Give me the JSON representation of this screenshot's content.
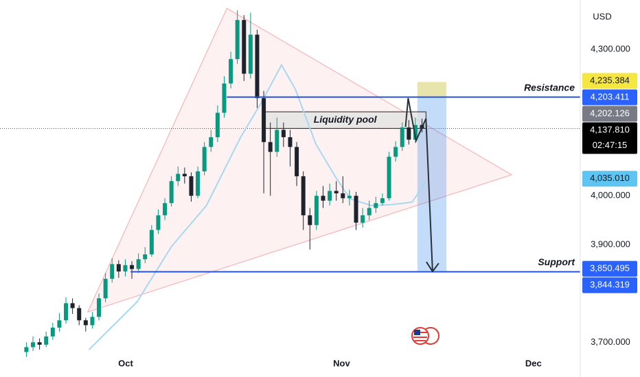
{
  "chart_data": {
    "type": "candlestick",
    "currency": "USD",
    "up_color": "#089981",
    "down_color": "#1e222d",
    "x": [
      4,
      5,
      6,
      7,
      8,
      9,
      10,
      11,
      12,
      13,
      14,
      15,
      16,
      17,
      18,
      19,
      20,
      21,
      22,
      23,
      24,
      25,
      26,
      27,
      28,
      29,
      30,
      31,
      32,
      33,
      34,
      35,
      36,
      37,
      38,
      39,
      40,
      41,
      42,
      43,
      44,
      45,
      46,
      47,
      48,
      49,
      50,
      51,
      52,
      53,
      54,
      55,
      56,
      57,
      58,
      59,
      60,
      61,
      62,
      63,
      64
    ],
    "open": [
      3680,
      3690,
      3700,
      3695,
      3712,
      3730,
      3745,
      3780,
      3770,
      3745,
      3735,
      3752,
      3790,
      3830,
      3860,
      3845,
      3858,
      3850,
      3870,
      3880,
      3930,
      3960,
      3985,
      4030,
      4045,
      4040,
      4000,
      4050,
      4100,
      4120,
      4170,
      4230,
      4280,
      4360,
      4250,
      4330,
      4200,
      4110,
      4090,
      4135,
      4120,
      4100,
      4040,
      3960,
      3940,
      4000,
      3990,
      4010,
      4005,
      3995,
      4000,
      3945,
      3960,
      3975,
      3985,
      3995,
      4080,
      4100,
      4140,
      4115,
      4145
    ],
    "high": [
      3700,
      3712,
      3708,
      3722,
      3740,
      3760,
      3792,
      3790,
      3776,
      3750,
      3762,
      3800,
      3842,
      3872,
      3868,
      3870,
      3866,
      3882,
      3895,
      3940,
      3972,
      3995,
      4040,
      4060,
      4058,
      4048,
      4060,
      4110,
      4135,
      4185,
      4245,
      4295,
      4380,
      4370,
      4375,
      4340,
      4215,
      4150,
      4160,
      4150,
      4135,
      4110,
      4050,
      3975,
      4010,
      4020,
      4025,
      4030,
      4040,
      4012,
      4008,
      3975,
      3990,
      3998,
      4005,
      4090,
      4112,
      4150,
      4155,
      4160,
      4158
    ],
    "low": [
      3670,
      3682,
      3685,
      3690,
      3705,
      3722,
      3738,
      3758,
      3735,
      3722,
      3728,
      3745,
      3782,
      3822,
      3832,
      3835,
      3830,
      3842,
      3862,
      3875,
      3922,
      3950,
      3978,
      4020,
      4025,
      3988,
      3995,
      4042,
      4090,
      4110,
      4160,
      4220,
      4270,
      4235,
      4240,
      4180,
      4005,
      4000,
      4080,
      4100,
      4060,
      4020,
      3930,
      3890,
      3930,
      3975,
      3980,
      3990,
      3985,
      3980,
      3930,
      3935,
      3950,
      3965,
      3980,
      3990,
      4070,
      4092,
      4105,
      4108,
      4130
    ],
    "close": [
      3690,
      3700,
      3695,
      3712,
      3730,
      3745,
      3780,
      3770,
      3745,
      3735,
      3752,
      3790,
      3830,
      3860,
      3845,
      3858,
      3850,
      3870,
      3880,
      3930,
      3960,
      3985,
      4030,
      4045,
      4040,
      4000,
      4050,
      4100,
      4120,
      4170,
      4230,
      4280,
      4360,
      4250,
      4330,
      4200,
      4110,
      4090,
      4135,
      4120,
      4100,
      4040,
      3960,
      3940,
      4000,
      3990,
      4010,
      4005,
      3995,
      4000,
      3945,
      3960,
      3975,
      3985,
      3995,
      4080,
      4100,
      4140,
      4115,
      4145,
      4137.81
    ],
    "moving_average": {
      "color": "#a8d8f0",
      "x": [
        13.5,
        20.8,
        26,
        31.3,
        36.5,
        39.6,
        42.7,
        44.8,
        47.9,
        51,
        53.1,
        56.3,
        59.4,
        62.5,
        64.6
      ],
      "values": [
        3685,
        3783,
        3896,
        3980,
        4120,
        4190,
        4268,
        4218,
        4106,
        4036,
        3994,
        3980,
        3982,
        3987,
        4029
      ]
    },
    "triangle": {
      "x": [
        13.3,
        34.4,
        77.6
      ],
      "y": [
        3762,
        4384,
        4043
      ]
    },
    "levels": [
      {
        "name": "Resistance",
        "value": 4202.126,
        "x_start": 34.4,
        "color": "#2153e0"
      },
      {
        "name": "Support",
        "value": 3844.319,
        "x_start": 19.8,
        "color": "#2153e0"
      }
    ],
    "zone": {
      "label": "Liquidity pool",
      "x": [
        40.1,
        64.6
      ],
      "y": [
        4138,
        4172
      ]
    },
    "projection": {
      "x": [
        63.3,
        67.7
      ],
      "y": [
        3846,
        4233
      ],
      "target_top": 4202
    },
    "arrow": {
      "x": [
        61.5,
        61.9,
        63.1,
        64.6,
        65.6
      ],
      "y": [
        4141,
        4200,
        4113,
        4158,
        3845
      ]
    },
    "xlim": [
      0,
      88
    ],
    "xticks": [
      {
        "value": 19.06,
        "label": "Oct"
      },
      {
        "value": 51.8,
        "label": "Nov"
      },
      {
        "value": 80.9,
        "label": "Dec"
      }
    ],
    "ylim": [
      3678,
      4401
    ],
    "yticks": [
      {
        "value": 4300,
        "label": "4,300.000"
      },
      {
        "value": 4000,
        "label": "4,000.000"
      },
      {
        "value": 3900,
        "label": "3,900.000"
      },
      {
        "value": 3700,
        "label": "3,700.000"
      }
    ],
    "price_labels": [
      {
        "value": 4235.384,
        "label": "4,235.384",
        "color": "#f5e642",
        "text_color": "#131722"
      },
      {
        "value": 4203.411,
        "label": "4,203.411",
        "color": "#2962ff",
        "text_color": "#ffffff"
      },
      {
        "value": 4202.126,
        "label": "4,202.126",
        "color": "#787b86",
        "text_color": "#ffffff"
      },
      {
        "value": 4137.81,
        "label": "4,137.810",
        "color": "#000000",
        "text_color": "#ffffff",
        "countdown": "02:47:15"
      },
      {
        "value": 4035.01,
        "label": "4,035.010",
        "color": "#5ec4f1",
        "text_color": "#131722"
      },
      {
        "value": 3850.495,
        "label": "3,850.495",
        "color": "#2962ff",
        "text_color": "#ffffff"
      },
      {
        "value": 3844.319,
        "label": "3,844.319",
        "color": "#2962ff",
        "text_color": "#ffffff"
      }
    ]
  }
}
